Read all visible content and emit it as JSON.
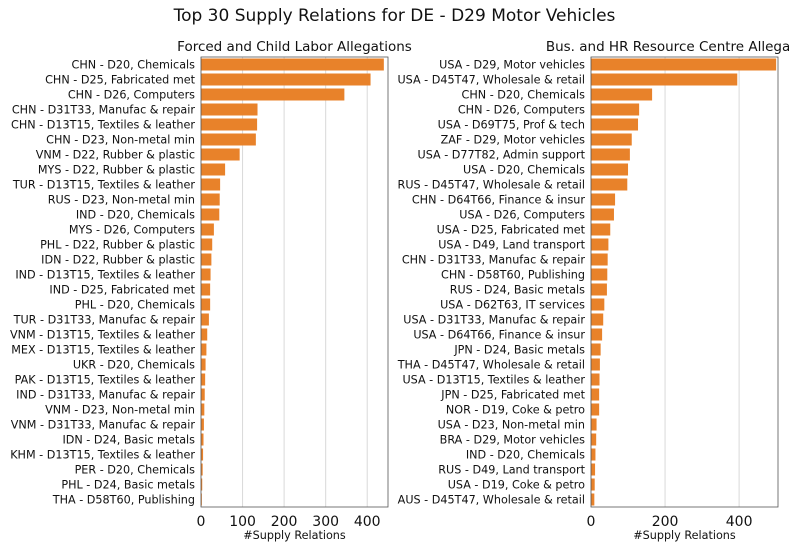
{
  "figure": {
    "title": "Top 30 Supply Relations for DE - D29 Motor Vehicles"
  },
  "chart_data": [
    {
      "type": "bar",
      "orientation": "horizontal",
      "title": "Forced and Child Labor Allegations",
      "xlabel": "#Supply Relations",
      "ylabel": "",
      "xlim": [
        0,
        450
      ],
      "xticks": [
        0,
        100,
        200,
        300,
        400
      ],
      "grid": true,
      "bar_color": "#e8822a",
      "categories": [
        "CHN - D20, Chemicals",
        "CHN - D25, Fabricated met",
        "CHN - D26, Computers",
        "CHN - D31T33, Manufac & repair",
        "CHN - D13T15, Textiles & leather",
        "CHN - D23, Non-metal min",
        "VNM - D22, Rubber & plastic",
        "MYS - D22, Rubber & plastic",
        "TUR - D13T15, Textiles & leather",
        "RUS - D23, Non-metal min",
        "IND - D20, Chemicals",
        "MYS - D26, Computers",
        "PHL - D22, Rubber & plastic",
        "IDN - D22, Rubber & plastic",
        "IND - D13T15, Textiles & leather",
        "IND - D25, Fabricated met",
        "PHL - D20, Chemicals",
        "TUR - D31T33, Manufac & repair",
        "VNM - D13T15, Textiles & leather",
        "MEX - D13T15, Textiles & leather",
        "UKR - D20, Chemicals",
        "PAK - D13T15, Textiles & leather",
        "IND - D31T33, Manufac & repair",
        "VNM - D23, Non-metal min",
        "VNM - D31T33, Manufac & repair",
        "IDN - D24, Basic metals",
        "KHM - D13T15, Textiles & leather",
        "PER - D20, Chemicals",
        "PHL - D24, Basic metals",
        "THA - D58T60, Publishing"
      ],
      "values": [
        440,
        408,
        345,
        136,
        135,
        132,
        93,
        58,
        46,
        45,
        44,
        31,
        27,
        25,
        23,
        22,
        22,
        19,
        15,
        13,
        11,
        10,
        9,
        8,
        7,
        6,
        5,
        4,
        3,
        2
      ]
    },
    {
      "type": "bar",
      "orientation": "horizontal",
      "title": "Bus. and HR Resource Centre Allegations",
      "xlabel": "#Supply Relations",
      "ylabel": "",
      "xlim": [
        0,
        505
      ],
      "xticks": [
        0,
        200,
        400
      ],
      "grid": true,
      "bar_color": "#e8822a",
      "categories": [
        "USA - D29, Motor vehicles",
        "USA - D45T47, Wholesale & retail",
        "CHN - D20, Chemicals",
        "CHN - D26, Computers",
        "USA - D69T75, Prof & tech",
        "ZAF - D29, Motor vehicles",
        "USA - D77T82, Admin support",
        "USA - D20, Chemicals",
        "RUS - D45T47, Wholesale & retail",
        "CHN - D64T66, Finance & insur",
        "USA - D26, Computers",
        "USA - D25, Fabricated met",
        "USA - D49, Land transport",
        "CHN - D31T33, Manufac & repair",
        "CHN - D58T60, Publishing",
        "RUS - D24, Basic metals",
        "USA - D62T63, IT services",
        "USA - D31T33, Manufac & repair",
        "USA - D64T66, Finance & insur",
        "JPN - D24, Basic metals",
        "THA - D45T47, Wholesale & retail",
        "USA - D13T15, Textiles & leather",
        "JPN - D25, Fabricated met",
        "NOR - D19, Coke & petro",
        "USA - D23, Non-metal min",
        "BRA - D29, Motor vehicles",
        "IND - D20, Chemicals",
        "RUS - D49, Land transport",
        "USA - D19, Coke & petro",
        "AUS - D45T47, Wholesale & retail"
      ],
      "values": [
        500,
        395,
        165,
        130,
        127,
        110,
        105,
        100,
        98,
        65,
        62,
        52,
        47,
        45,
        44,
        43,
        36,
        33,
        30,
        26,
        24,
        23,
        22,
        22,
        15,
        14,
        12,
        11,
        10,
        9
      ]
    }
  ]
}
